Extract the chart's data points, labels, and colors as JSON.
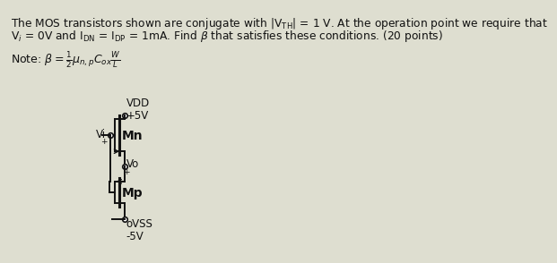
{
  "bg_color": "#deded0",
  "text_color": "#111111",
  "circuit_color": "#111111",
  "line1": "The MOS transistors shown are conjugate with |V$_{\\mathrm{TH}}$| = 1 V. At the operation point we require that",
  "line2": "V$_i$ = 0V and I$_{\\mathrm{DN}}$ = I$_{\\mathrm{DP}}$ = 1mA. Find $\\beta$ that satisfies these conditions. (20 points)",
  "note": "Note: $\\beta = \\frac{1}{2}\\mu_{n,p}C_{ox}\\frac{W}{L}$",
  "font_title": 8.8,
  "font_note": 9.0,
  "font_circ": 8.5,
  "vdd_text": "VDD\n+5V",
  "vss_text": "oVSS\n-5V",
  "mn_text": "Mn",
  "mp_text": "Mp",
  "vi_text": "Vi",
  "vo_text": "Vo",
  "plus_text": "+",
  "lw": 1.4,
  "lw_thick": 2.2
}
